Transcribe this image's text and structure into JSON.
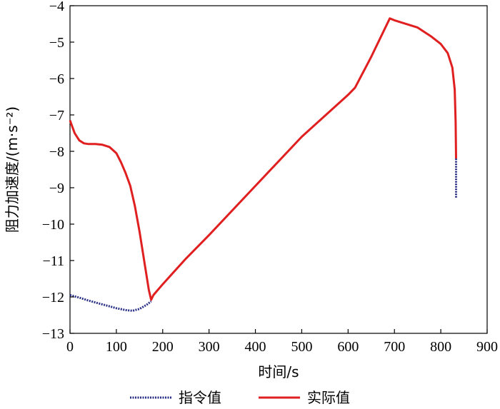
{
  "chart_data": {
    "type": "line",
    "xlabel": "时间/s",
    "ylabel": "阻力加速度/(m·s⁻²)",
    "xlim": [
      0,
      900
    ],
    "ylim": [
      -13,
      -4
    ],
    "xticks": [
      "0",
      "100",
      "200",
      "300",
      "400",
      "500",
      "600",
      "700",
      "800",
      "900"
    ],
    "yticks": [
      "−4",
      "−5",
      "−6",
      "−7",
      "−8",
      "−9",
      "−10",
      "−11",
      "−12",
      "−13"
    ],
    "grid": false,
    "legend_position": "bottom",
    "series": [
      {
        "name": "指令值",
        "color": "#2a2f86",
        "style": "dotted",
        "x": [
          0,
          20,
          40,
          60,
          80,
          100,
          120,
          135,
          150,
          165,
          175
        ],
        "y": [
          -11.95,
          -12.02,
          -12.1,
          -12.17,
          -12.24,
          -12.31,
          -12.36,
          -12.38,
          -12.33,
          -12.22,
          -12.12
        ]
      },
      {
        "name": "实际值",
        "color": "#e02020",
        "style": "solid",
        "x": [
          0,
          10,
          20,
          30,
          40,
          55,
          70,
          85,
          100,
          110,
          120,
          130,
          140,
          150,
          160,
          170,
          175,
          180,
          200,
          250,
          300,
          400,
          500,
          600,
          615,
          650,
          690,
          700,
          750,
          780,
          800,
          815,
          825,
          830,
          832,
          833
        ],
        "y": [
          -7.15,
          -7.5,
          -7.7,
          -7.78,
          -7.8,
          -7.8,
          -7.82,
          -7.88,
          -8.05,
          -8.3,
          -8.6,
          -8.95,
          -9.5,
          -10.2,
          -11.0,
          -11.8,
          -12.08,
          -11.95,
          -11.65,
          -10.95,
          -10.3,
          -8.95,
          -7.6,
          -6.45,
          -6.25,
          -5.4,
          -4.35,
          -4.4,
          -4.6,
          -4.85,
          -5.05,
          -5.3,
          -5.7,
          -6.3,
          -7.2,
          -8.2
        ]
      },
      {
        "name": "指令值-tail",
        "color": "#2a2f86",
        "style": "dotted",
        "x": [
          833,
          833
        ],
        "y": [
          -8.2,
          -9.3
        ]
      }
    ]
  },
  "legend": [
    {
      "label": "指令值",
      "color": "#2a2f86",
      "style": "dotted"
    },
    {
      "label": "实际值",
      "color": "#e02020",
      "style": "solid"
    }
  ]
}
